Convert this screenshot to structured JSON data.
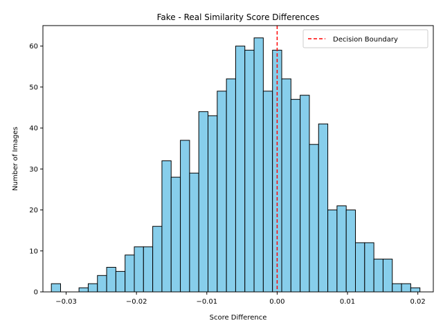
{
  "chart_data": {
    "type": "bar",
    "title": "Fake - Real Similarity Score Differences",
    "xlabel": "Score Difference",
    "ylabel": "Number of Images",
    "xlim": [
      -0.0333,
      0.0222
    ],
    "ylim": [
      0,
      65
    ],
    "xticks": [
      -0.03,
      -0.02,
      -0.01,
      0.0,
      0.01,
      0.02
    ],
    "xtick_labels": [
      "−0.03",
      "−0.02",
      "−0.01",
      "0.00",
      "0.01",
      "0.02"
    ],
    "yticks": [
      0,
      10,
      20,
      30,
      40,
      50,
      60
    ],
    "ytick_labels": [
      "0",
      "10",
      "20",
      "30",
      "40",
      "50",
      "60"
    ],
    "bin_start": -0.0321,
    "bin_width": 0.00131,
    "values": [
      2,
      0,
      0,
      1,
      2,
      4,
      6,
      5,
      9,
      11,
      11,
      16,
      32,
      28,
      37,
      29,
      44,
      43,
      49,
      52,
      60,
      59,
      62,
      49,
      59,
      52,
      47,
      48,
      36,
      41,
      20,
      21,
      20,
      12,
      12,
      8,
      8,
      2,
      2,
      1
    ],
    "bar_color": "#87ceeb",
    "bar_edge_color": "#000000",
    "decision_boundary": {
      "x": 0.0,
      "color": "#ff0000",
      "label": "Decision Boundary"
    },
    "legend": {
      "position": "top-right",
      "entries": [
        "Decision Boundary"
      ]
    },
    "grid": false
  }
}
